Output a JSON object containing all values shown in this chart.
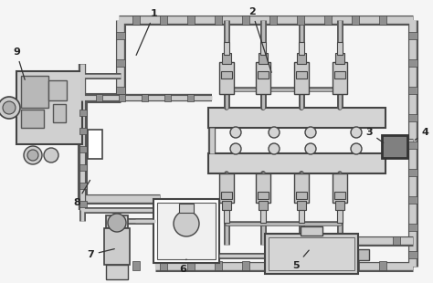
{
  "bg": "#f5f5f5",
  "pipe_fill": "#c8c8c8",
  "pipe_edge": "#555555",
  "rail_fill": "#d4d4d4",
  "rail_edge": "#444444",
  "inj_fill": "#cccccc",
  "inj_edge": "#444444",
  "pump_fill": "#cccccc",
  "pump_edge": "#444444",
  "gray_box": "#808080",
  "white": "#ffffff",
  "tank_fill": "#cccccc",
  "tank_edge": "#444444",
  "ecm_fill": "#ffffff",
  "ecm_edge": "#444444",
  "filter_fill": "#cccccc",
  "filter_edge": "#444444",
  "label_color": "#222222",
  "pipe_lw": 6,
  "pipe_inner_lw": 4,
  "figsize": [
    4.74,
    3.1
  ],
  "dpi": 100
}
